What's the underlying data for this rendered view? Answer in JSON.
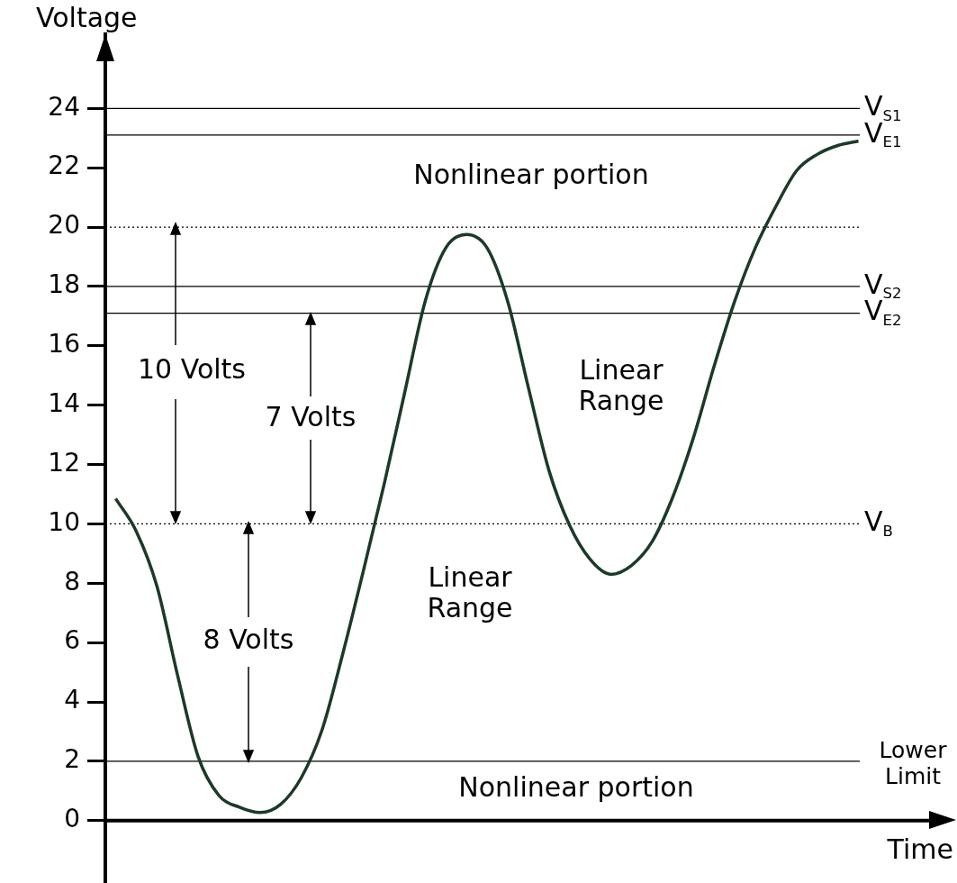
{
  "chart_data": {
    "type": "line",
    "xlabel": "Time",
    "ylabel": "Voltage",
    "categories": [
      null,
      null,
      null,
      null,
      null,
      null,
      null,
      null,
      null,
      null,
      null,
      null,
      null,
      null,
      null,
      null,
      null,
      null,
      null,
      null,
      null,
      null,
      null,
      null,
      null,
      null,
      null,
      null,
      null,
      null,
      null,
      null,
      null,
      null,
      null,
      null,
      null
    ],
    "series": [
      {
        "color": "#1b3a28",
        "values": [
          10.85,
          9.75,
          7.9,
          4.9,
          2.15,
          0.85,
          0.45,
          0.27,
          0.55,
          1.45,
          3.05,
          5.6,
          8.4,
          11.3,
          14.4,
          17.5,
          19.3,
          19.75,
          19.3,
          17.5,
          14.6,
          11.8,
          9.95,
          8.8,
          8.3,
          8.6,
          9.4,
          10.9,
          12.9,
          15.3,
          17.5,
          19.3,
          20.7,
          21.9,
          22.45,
          22.75,
          22.9
        ]
      }
    ],
    "ylim": [
      -1.35,
      26.5
    ],
    "yticks": [
      0,
      2,
      4,
      6,
      8,
      10,
      12,
      14,
      16,
      18,
      20,
      22,
      24
    ],
    "grid": false,
    "legend": false,
    "marker": "none",
    "line_style": "solid",
    "ref_lines": [
      {
        "axis": "y",
        "value": 24,
        "label": "V$_{S1}$",
        "color": "#000000",
        "line_style": "solid"
      },
      {
        "axis": "y",
        "value": 23.1,
        "label": "V$_{E1}$",
        "color": "#000000",
        "line_style": "solid"
      },
      {
        "axis": "y",
        "value": 20,
        "label": null,
        "color": "#000000",
        "line_style": "dotted"
      },
      {
        "axis": "y",
        "value": 18,
        "label": "V$_{S2}$",
        "color": "#000000",
        "line_style": "solid"
      },
      {
        "axis": "y",
        "value": 17.1,
        "label": "V$_{E2}$",
        "color": "#000000",
        "line_style": "solid"
      },
      {
        "axis": "y",
        "value": 10,
        "label": "V$_{B}$",
        "color": "#000000",
        "line_style": "dotted"
      },
      {
        "axis": "y",
        "value": 2,
        "label": "Lower Limit",
        "color": "#000000",
        "line_style": "solid"
      }
    ],
    "annotations": [
      "Nonlinear portion",
      "10 Volts",
      "7 Volts",
      "Linear Range",
      "Linear Range",
      "8 Volts",
      "Nonlinear portion"
    ]
  }
}
